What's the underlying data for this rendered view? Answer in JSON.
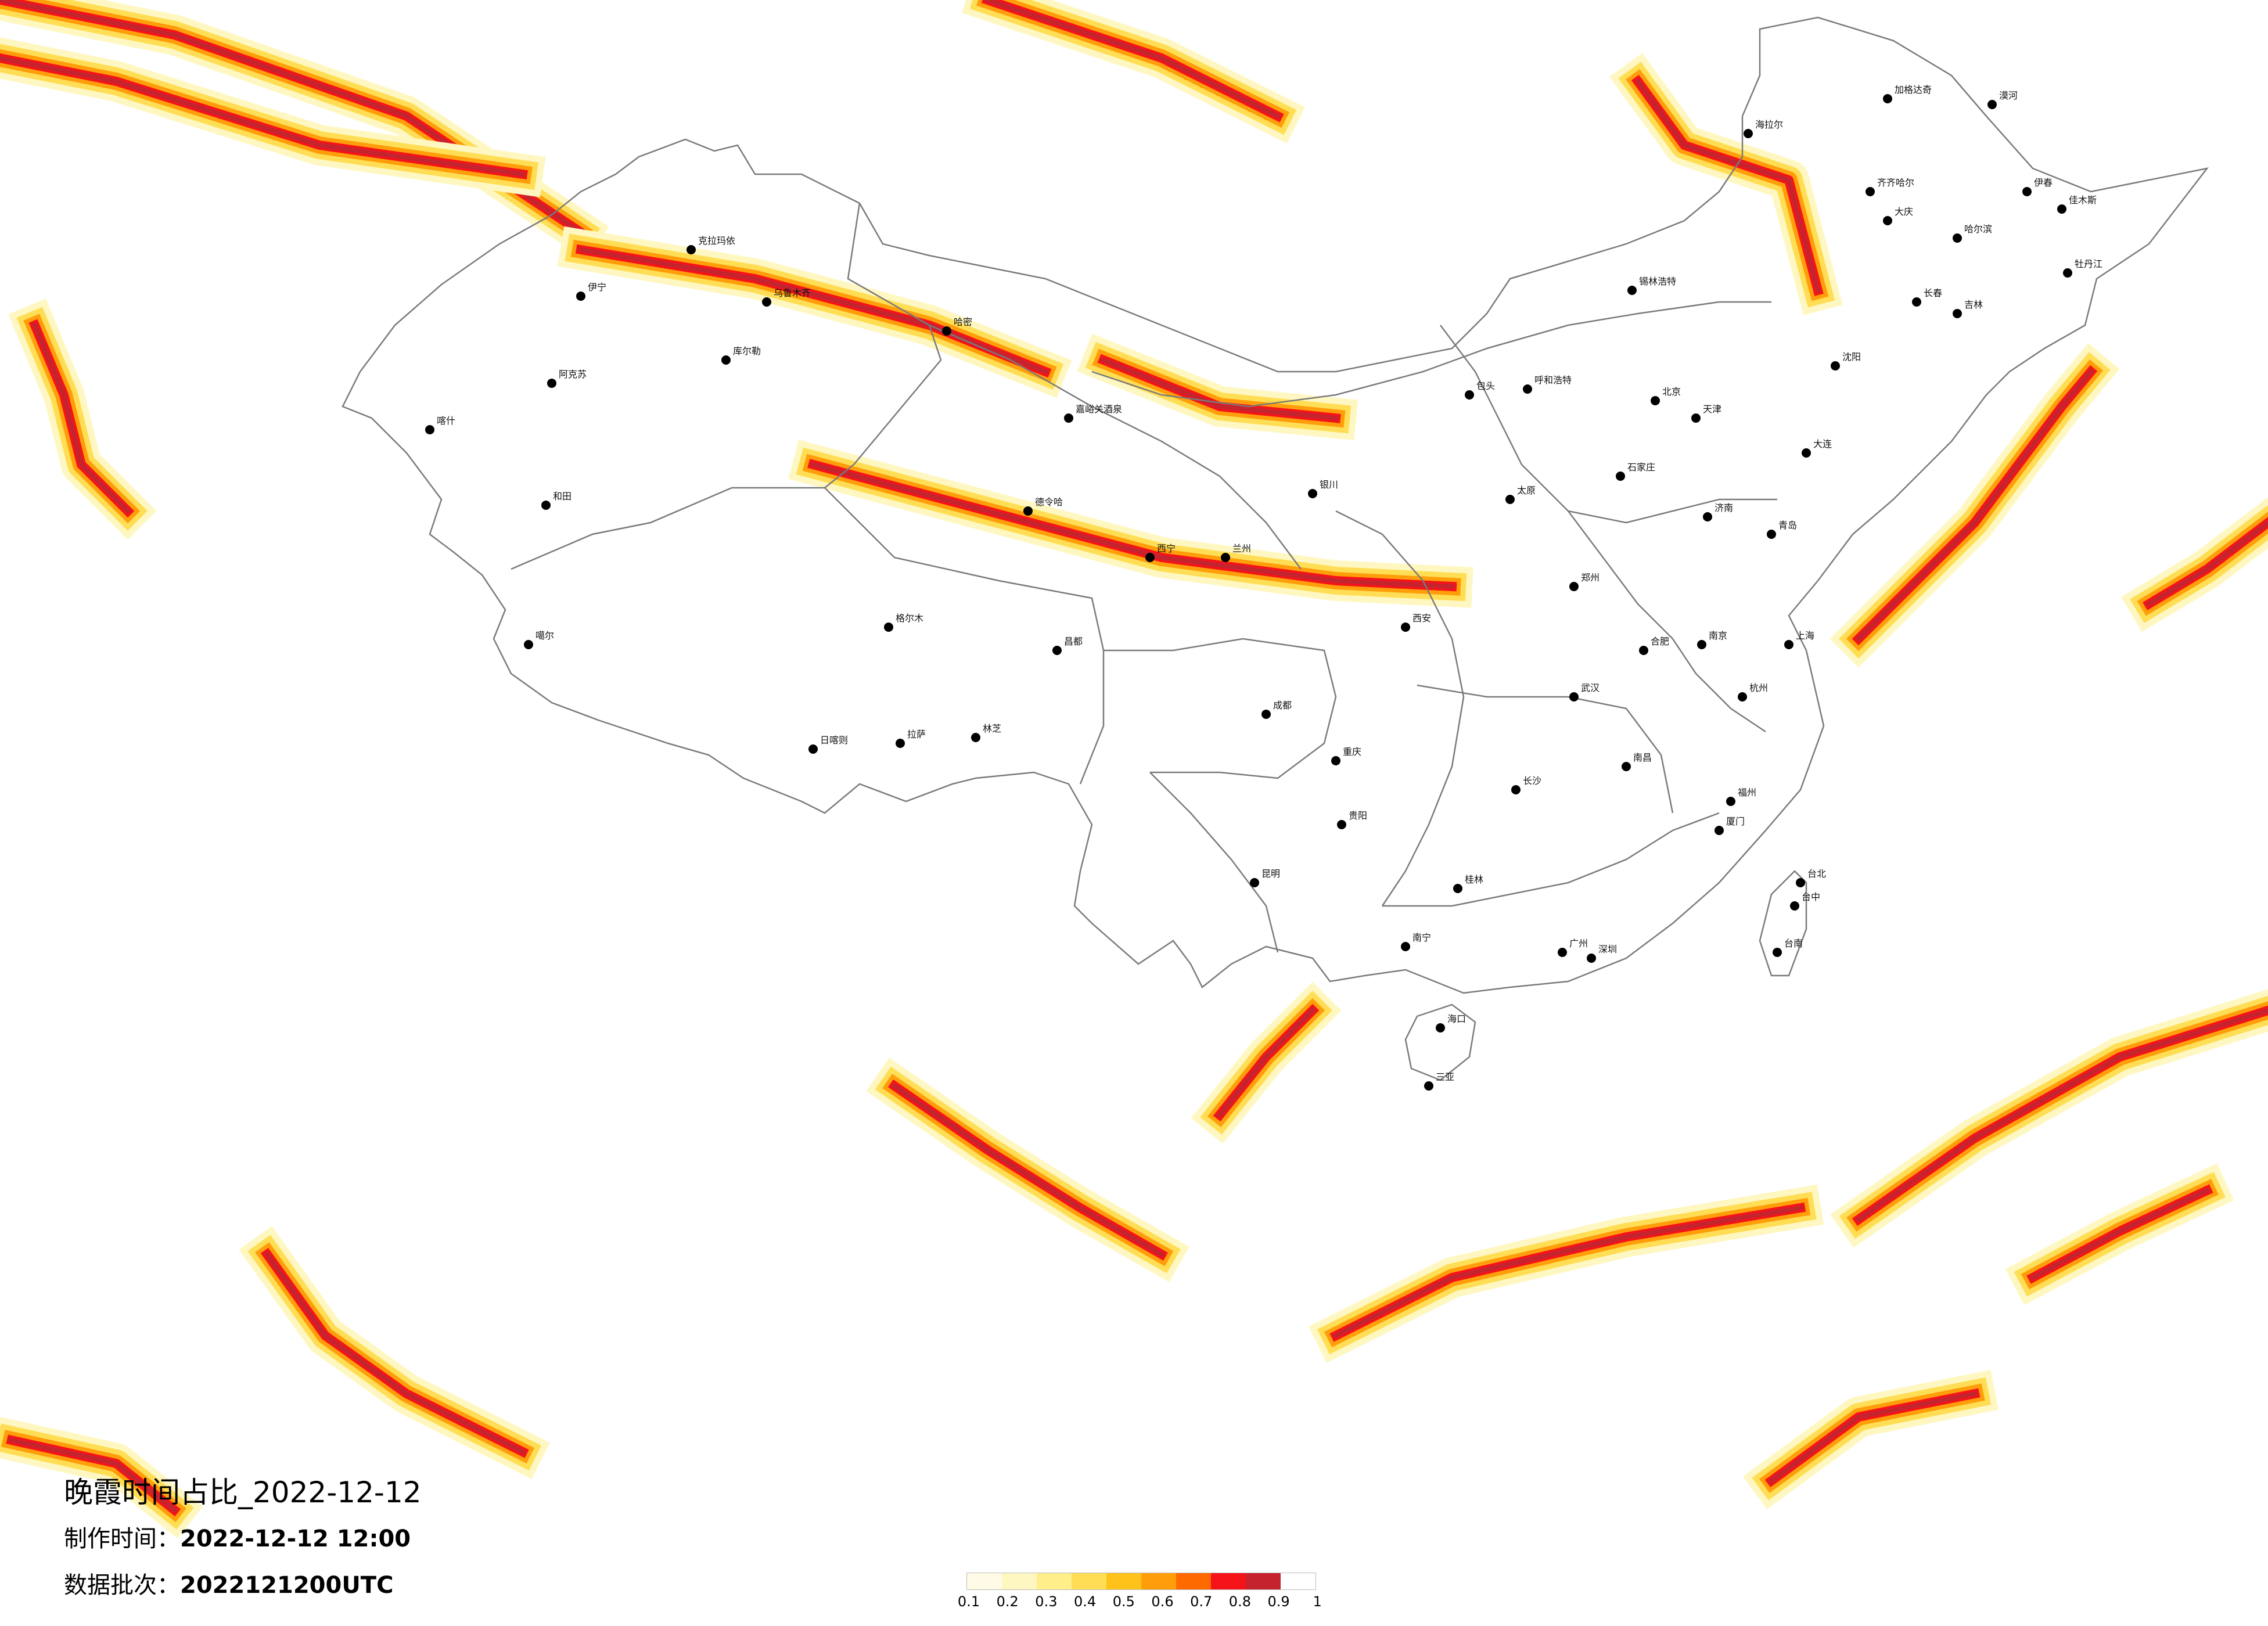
{
  "title": "晚霞时间占比_2022-12-12",
  "meta": {
    "time_label": "制作时间：",
    "time_value": "2022-12-12 12:00",
    "batch_label": "数据批次：",
    "batch_value": "2022121200UTC"
  },
  "legend": {
    "ticks": [
      "0.1",
      "0.2",
      "0.3",
      "0.4",
      "0.5",
      "0.6",
      "0.7",
      "0.8",
      "0.9",
      "1"
    ],
    "colors": [
      "#fffbe6",
      "#fff7c2",
      "#ffee8a",
      "#ffde55",
      "#ffc21a",
      "#ff9e0a",
      "#ff6a00",
      "#f5131a",
      "#c5242f"
    ]
  },
  "cities": [
    {
      "name": "漠河"
    },
    {
      "name": "加格达奇"
    },
    {
      "name": "海拉尔"
    },
    {
      "name": "齐齐哈尔"
    },
    {
      "name": "大庆"
    },
    {
      "name": "哈尔滨"
    },
    {
      "name": "佳木斯"
    },
    {
      "name": "牡丹江"
    },
    {
      "name": "伊春"
    },
    {
      "name": "长春"
    },
    {
      "name": "吉林"
    },
    {
      "name": "沈阳"
    },
    {
      "name": "大连"
    },
    {
      "name": "锡林浩特"
    },
    {
      "name": "呼和浩特"
    },
    {
      "name": "包头"
    },
    {
      "name": "北京"
    },
    {
      "name": "天津"
    },
    {
      "name": "石家庄"
    },
    {
      "name": "太原"
    },
    {
      "name": "济南"
    },
    {
      "name": "青岛"
    },
    {
      "name": "郑州"
    },
    {
      "name": "西安"
    },
    {
      "name": "兰州"
    },
    {
      "name": "银川"
    },
    {
      "name": "西宁"
    },
    {
      "name": "乌鲁木齐"
    },
    {
      "name": "克拉玛依"
    },
    {
      "name": "伊宁"
    },
    {
      "name": "库尔勒"
    },
    {
      "name": "阿克苏"
    },
    {
      "name": "和田"
    },
    {
      "name": "喀什"
    },
    {
      "name": "哈密"
    },
    {
      "name": "嘉峪关酒泉"
    },
    {
      "name": "德令哈"
    },
    {
      "name": "格尔木"
    },
    {
      "name": "噶尔"
    },
    {
      "name": "拉萨"
    },
    {
      "name": "日喀则"
    },
    {
      "name": "林芝"
    },
    {
      "name": "昌都"
    },
    {
      "name": "成都"
    },
    {
      "name": "重庆"
    },
    {
      "name": "贵阳"
    },
    {
      "name": "昆明"
    },
    {
      "name": "南宁"
    },
    {
      "name": "桂林"
    },
    {
      "name": "长沙"
    },
    {
      "name": "武汉"
    },
    {
      "name": "南昌"
    },
    {
      "name": "合肥"
    },
    {
      "name": "南京"
    },
    {
      "name": "上海"
    },
    {
      "name": "杭州"
    },
    {
      "name": "福州"
    },
    {
      "name": "厦门"
    },
    {
      "name": "广州"
    },
    {
      "name": "深圳"
    },
    {
      "name": "海口"
    },
    {
      "name": "三亚"
    },
    {
      "name": "台北"
    },
    {
      "name": "台中"
    },
    {
      "name": "台南"
    }
  ]
}
